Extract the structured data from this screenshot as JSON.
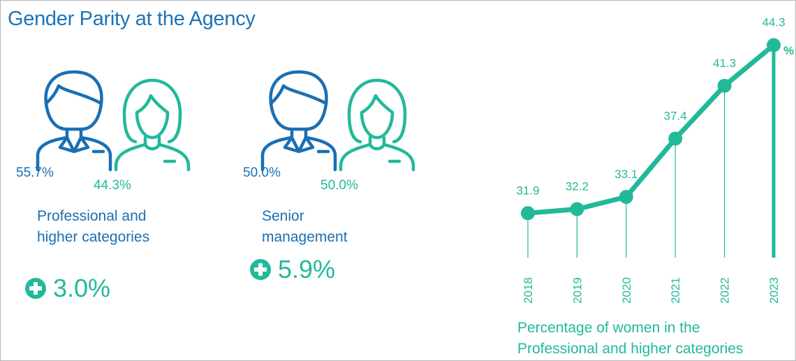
{
  "title": "Gender Parity at the Agency",
  "colors": {
    "men": "#1a6fb4",
    "women": "#22b99a",
    "title": "#1a74b8"
  },
  "groups": [
    {
      "category_line1": "Professional and",
      "category_line2": "higher categories",
      "men_pct": "55.7%",
      "women_pct": "44.3%",
      "increase": "3.0%"
    },
    {
      "category_line1": "Senior",
      "category_line2": "management",
      "men_pct": "50.0%",
      "women_pct": "50.0%",
      "increase": "5.9%"
    }
  ],
  "chart_data": {
    "type": "line",
    "x": [
      "2018",
      "2019",
      "2020",
      "2021",
      "2022",
      "2023"
    ],
    "series": [
      {
        "values": [
          31.9,
          32.2,
          33.1,
          37.4,
          41.3,
          44.3
        ]
      }
    ],
    "value_labels": [
      "31.9",
      "32.2",
      "33.1",
      "37.4",
      "41.3",
      "44.3"
    ],
    "unit": "%",
    "ylim": [
      28,
      45
    ],
    "grid": false,
    "caption_line1": "Percentage of women in the",
    "caption_line2": "Professional and higher categories"
  }
}
